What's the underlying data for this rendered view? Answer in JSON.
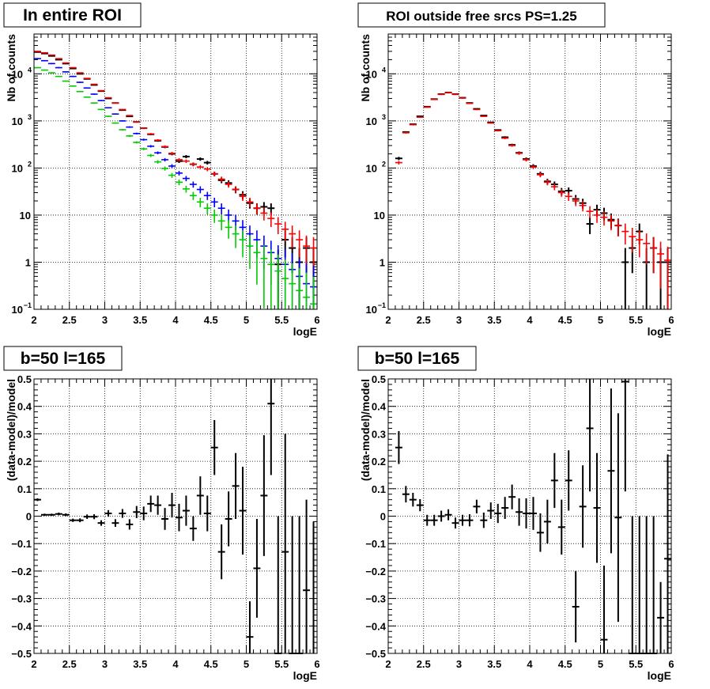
{
  "chart_data": [
    {
      "type": "scatter",
      "title": "In entire ROI",
      "xlabel": "logE",
      "ylabel": "Nb of counts",
      "xlim": [
        2,
        6
      ],
      "ylim": [
        0.1,
        70000
      ],
      "log_y": true,
      "grid": true,
      "x_ticks": [
        "2",
        "2.5",
        "3",
        "3.5",
        "4",
        "4.5",
        "5",
        "5.5",
        "6"
      ],
      "y_ticks": [
        {
          "value": 0.1,
          "base": "10",
          "exp": "−1"
        },
        {
          "value": 1,
          "base": "1",
          "exp": ""
        },
        {
          "value": 10,
          "base": "10",
          "exp": ""
        },
        {
          "value": 100,
          "base": "10",
          "exp": "2"
        },
        {
          "value": 1000,
          "base": "10",
          "exp": "3"
        },
        {
          "value": 10000,
          "base": "10",
          "exp": "4"
        }
      ],
      "bin_half_width": 0.05,
      "x": [
        2.05,
        2.15,
        2.25,
        2.35,
        2.45,
        2.55,
        2.65,
        2.75,
        2.85,
        2.95,
        3.05,
        3.15,
        3.25,
        3.35,
        3.45,
        3.55,
        3.65,
        3.75,
        3.85,
        3.95,
        4.05,
        4.15,
        4.25,
        4.35,
        4.45,
        4.55,
        4.65,
        4.75,
        4.85,
        4.95,
        5.05,
        5.15,
        5.25,
        5.35,
        5.45,
        5.55,
        5.65,
        5.75,
        5.85,
        5.95
      ],
      "series": [
        {
          "color": "#000000",
          "values": [
            29000,
            27000,
            24000,
            20000,
            16500,
            13000,
            10000,
            7800,
            5800,
            4300,
            3000,
            2400,
            1700,
            1250,
            950,
            700,
            520,
            380,
            280,
            200,
            140,
            175,
            120,
            155,
            130,
            75,
            55,
            48,
            35,
            27,
            18,
            14,
            15,
            14,
            0.9,
            3,
            2,
            1,
            2,
            1
          ],
          "err_rel": 0.02
        },
        {
          "color": "#ff0000",
          "values": [
            30000,
            28000,
            25000,
            21000,
            17000,
            13500,
            10500,
            8000,
            6000,
            4400,
            3100,
            2400,
            1750,
            1300,
            950,
            700,
            530,
            390,
            285,
            205,
            150,
            140,
            120,
            105,
            95,
            75,
            58,
            45,
            35,
            25,
            19,
            14,
            11,
            8.5,
            6.5,
            5,
            4,
            3,
            2.2,
            2
          ],
          "err_rel": 0.02
        },
        {
          "color": "#0000ff",
          "values": [
            21000,
            19000,
            16500,
            13500,
            11000,
            8800,
            6600,
            5000,
            3700,
            2700,
            1900,
            1400,
            1000,
            740,
            540,
            400,
            290,
            210,
            150,
            110,
            78,
            60,
            45,
            35,
            26,
            19,
            14,
            10,
            7.5,
            5.5,
            4,
            3,
            2.2,
            1.6,
            1.2,
            0.9,
            0.7,
            0.5,
            0.35,
            0.3
          ],
          "err_rel": 0.03
        },
        {
          "color": "#00cc00",
          "values": [
            13500,
            12000,
            10500,
            8800,
            7000,
            5500,
            4200,
            3200,
            2400,
            1750,
            1250,
            900,
            650,
            480,
            350,
            255,
            185,
            135,
            98,
            70,
            50,
            36,
            26,
            19,
            14,
            10,
            7.5,
            5.5,
            4,
            3,
            2.2,
            1.6,
            1.2,
            0.9,
            0.65,
            0.45,
            0.35,
            0.25,
            0.18,
            0.13
          ],
          "err_rel": 0.03
        }
      ]
    },
    {
      "type": "scatter",
      "title": "ROI outside free srcs PS=1.25",
      "xlabel": "logE",
      "ylabel": "Nb of counts",
      "xlim": [
        2,
        6
      ],
      "ylim": [
        0.1,
        70000
      ],
      "log_y": true,
      "grid": true,
      "x_ticks": [
        "2",
        "2.5",
        "3",
        "3.5",
        "4",
        "4.5",
        "5",
        "5.5",
        "6"
      ],
      "y_ticks": [
        {
          "value": 0.1,
          "base": "10",
          "exp": "−1"
        },
        {
          "value": 1,
          "base": "1",
          "exp": ""
        },
        {
          "value": 10,
          "base": "10",
          "exp": ""
        },
        {
          "value": 100,
          "base": "10",
          "exp": "2"
        },
        {
          "value": 1000,
          "base": "10",
          "exp": "3"
        },
        {
          "value": 10000,
          "base": "10",
          "exp": "4"
        }
      ],
      "bin_half_width": 0.05,
      "x": [
        2.15,
        2.25,
        2.35,
        2.45,
        2.55,
        2.65,
        2.75,
        2.85,
        2.95,
        3.05,
        3.15,
        3.25,
        3.35,
        3.45,
        3.55,
        3.65,
        3.75,
        3.85,
        3.95,
        4.05,
        4.15,
        4.25,
        4.35,
        4.45,
        4.55,
        4.65,
        4.75,
        4.85,
        4.95,
        5.05,
        5.15,
        5.25,
        5.35,
        5.45,
        5.55,
        5.65,
        5.75,
        5.85,
        5.95
      ],
      "series": [
        {
          "color": "#000000",
          "values": [
            160,
            580,
            850,
            1250,
            2000,
            2900,
            3700,
            4000,
            3700,
            3100,
            2400,
            1800,
            1300,
            930,
            640,
            450,
            310,
            210,
            155,
            110,
            75,
            52,
            45,
            32,
            33,
            22,
            18,
            6.5,
            13,
            11,
            8,
            6,
            1,
            2,
            4.5,
            1,
            2,
            1,
            1
          ],
          "err_rel": 0.03
        },
        {
          "color": "#ff0000",
          "values": [
            130,
            560,
            830,
            1200,
            1950,
            2850,
            3650,
            3950,
            3650,
            3050,
            2350,
            1750,
            1250,
            900,
            620,
            430,
            300,
            205,
            150,
            105,
            72,
            50,
            40,
            30,
            25,
            20,
            16,
            12,
            10,
            9,
            7.5,
            6,
            4.5,
            3.5,
            3,
            2.5,
            2,
            1.5,
            1.1
          ],
          "err_rel": 0.03
        }
      ]
    },
    {
      "type": "scatter",
      "title": "b=50 l=165",
      "xlabel": "logE",
      "ylabel": "(data-model)/model",
      "xlim": [
        2,
        6
      ],
      "ylim": [
        -0.5,
        0.5
      ],
      "log_y": false,
      "grid": true,
      "x_ticks": [
        "2",
        "2.5",
        "3",
        "3.5",
        "4",
        "4.5",
        "5",
        "5.5",
        "6"
      ],
      "y_ticks": [
        "−0.5",
        "−0.4",
        "−0.3",
        "−0.2",
        "−0.1",
        "0",
        "0.1",
        "0.2",
        "0.3",
        "0.4",
        "0.5"
      ],
      "bin_half_width": 0.05,
      "x": [
        2.05,
        2.15,
        2.25,
        2.35,
        2.45,
        2.55,
        2.65,
        2.75,
        2.85,
        2.95,
        3.05,
        3.15,
        3.25,
        3.35,
        3.45,
        3.55,
        3.65,
        3.75,
        3.85,
        3.95,
        4.05,
        4.15,
        4.25,
        4.35,
        4.45,
        4.55,
        4.65,
        4.75,
        4.85,
        4.95,
        5.05,
        5.15,
        5.25,
        5.35,
        5.45,
        5.55,
        5.65,
        5.75,
        5.85,
        5.95
      ],
      "series": [
        {
          "color": "#000000",
          "values": [
            0.06,
            0.005,
            0.005,
            0.008,
            0.005,
            -0.015,
            -0.015,
            -0.002,
            -0.002,
            -0.025,
            0.01,
            -0.025,
            0.01,
            -0.03,
            0.015,
            0.01,
            0.045,
            0.04,
            -0.01,
            0.04,
            -0.005,
            0.02,
            -0.045,
            0.075,
            0.01,
            0.25,
            -0.13,
            -0.01,
            0.11,
            0.02,
            -0.44,
            -0.19,
            0.075,
            0.41,
            -0.5,
            -0.13,
            -0.5,
            -0.5,
            -0.27,
            -0.52
          ],
          "errors": [
            0.005,
            0.004,
            0.004,
            0.005,
            0.005,
            0.006,
            0.007,
            0.008,
            0.009,
            0.01,
            0.012,
            0.014,
            0.016,
            0.019,
            0.022,
            0.025,
            0.03,
            0.035,
            0.04,
            0.045,
            0.05,
            0.055,
            0.045,
            0.07,
            0.065,
            0.1,
            0.1,
            0.1,
            0.12,
            0.16,
            0.13,
            0.18,
            0.22,
            0.26,
            0.5,
            0.43,
            0.5,
            0.5,
            0.33,
            0.5
          ]
        }
      ]
    },
    {
      "type": "scatter",
      "title": "b=50 l=165",
      "xlabel": "logE",
      "ylabel": "(data-model)/model",
      "xlim": [
        2,
        6
      ],
      "ylim": [
        -0.5,
        0.5
      ],
      "log_y": false,
      "grid": true,
      "x_ticks": [
        "2",
        "2.5",
        "3",
        "3.5",
        "4",
        "4.5",
        "5",
        "5.5",
        "6"
      ],
      "y_ticks": [
        "−0.5",
        "−0.4",
        "−0.3",
        "−0.2",
        "−0.1",
        "0",
        "0.1",
        "0.2",
        "0.3",
        "0.4",
        "0.5"
      ],
      "bin_half_width": 0.05,
      "x": [
        2.15,
        2.25,
        2.35,
        2.45,
        2.55,
        2.65,
        2.75,
        2.85,
        2.95,
        3.05,
        3.15,
        3.25,
        3.35,
        3.45,
        3.55,
        3.65,
        3.75,
        3.85,
        3.95,
        4.05,
        4.15,
        4.25,
        4.35,
        4.45,
        4.55,
        4.65,
        4.75,
        4.85,
        4.95,
        5.05,
        5.15,
        5.25,
        5.35,
        5.45,
        5.55,
        5.65,
        5.75,
        5.85,
        5.95
      ],
      "series": [
        {
          "color": "#000000",
          "values": [
            0.25,
            0.08,
            0.06,
            0.04,
            -0.015,
            -0.015,
            0.0,
            0.005,
            -0.025,
            -0.015,
            -0.015,
            0.035,
            -0.015,
            0.02,
            0.01,
            0.03,
            0.07,
            0.015,
            0.01,
            0.01,
            -0.06,
            -0.02,
            0.13,
            -0.04,
            0.13,
            -0.33,
            0.035,
            0.32,
            0.03,
            -0.45,
            0.165,
            -0.005,
            0.49,
            -0.5,
            -0.5,
            -0.5,
            -0.5,
            -0.37,
            -0.155
          ],
          "errors": [
            0.06,
            0.03,
            0.025,
            0.022,
            0.02,
            0.02,
            0.02,
            0.02,
            0.02,
            0.02,
            0.022,
            0.025,
            0.028,
            0.03,
            0.035,
            0.04,
            0.045,
            0.05,
            0.055,
            0.06,
            0.07,
            0.08,
            0.1,
            0.1,
            0.11,
            0.13,
            0.15,
            0.23,
            0.2,
            0.27,
            0.3,
            0.38,
            0.4,
            0.5,
            0.5,
            0.5,
            0.5,
            0.13,
            0.38
          ]
        }
      ]
    }
  ]
}
